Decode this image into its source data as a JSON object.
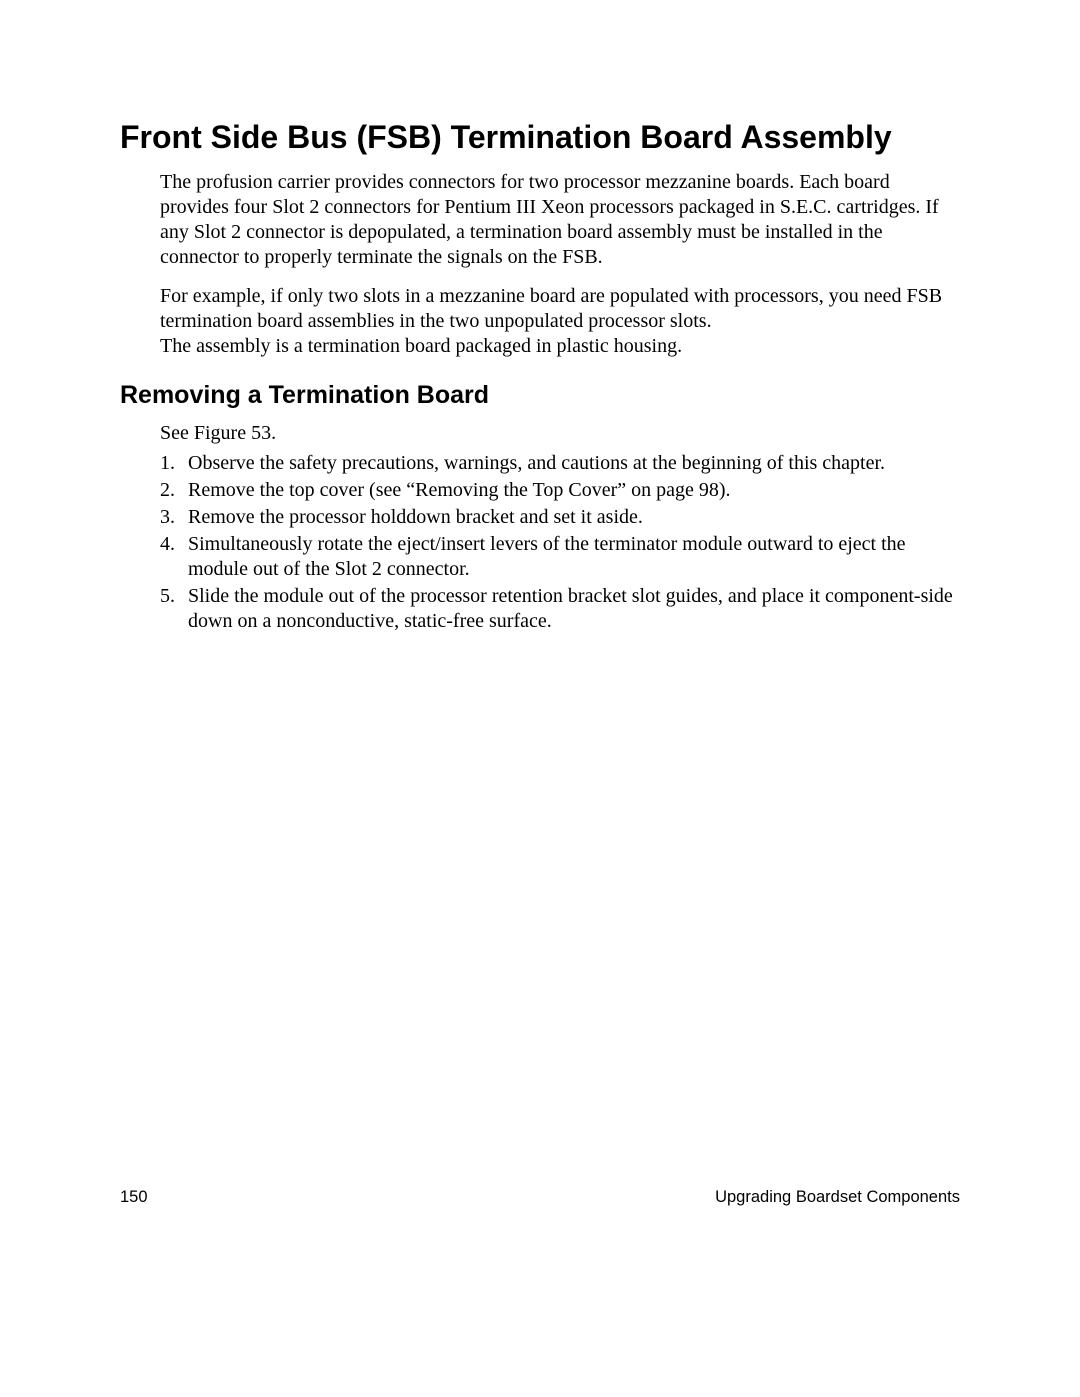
{
  "colors": {
    "background": "#ffffff",
    "text": "#000000"
  },
  "heading1": "Front Side Bus (FSB) Termination Board Assembly",
  "paragraphs": {
    "p1": "The profusion carrier provides connectors for two processor mezzanine boards.  Each board provides four Slot 2 connectors for Pentium III Xeon processors packaged in S.E.C. cartridges.  If any Slot 2 connector is depopulated, a termination board assembly must be installed in the connector to properly terminate the signals on the FSB.",
    "p2": "For example, if only two slots in a mezzanine board are populated with processors, you need FSB termination board assemblies in the two unpopulated processor slots.\nThe assembly is a termination board packaged in plastic housing."
  },
  "heading2": "Removing a Termination Board",
  "see_figure": "See Figure 53.",
  "steps": [
    {
      "num": "1.",
      "text": "Observe the safety precautions, warnings, and cautions at the beginning of this chapter."
    },
    {
      "num": "2.",
      "text": "Remove the top cover (see “Removing the Top Cover” on page 98)."
    },
    {
      "num": "3.",
      "text": "Remove the processor holddown bracket and set it aside."
    },
    {
      "num": "4.",
      "text": "Simultaneously rotate the eject/insert levers of the terminator module outward to eject the module out of the Slot 2 connector."
    },
    {
      "num": "5.",
      "text": "Slide the module out of the processor retention bracket slot guides, and place it component-side down on a nonconductive, static-free surface."
    }
  ],
  "footer": {
    "page_number": "150",
    "section": "Upgrading Boardset Components"
  }
}
